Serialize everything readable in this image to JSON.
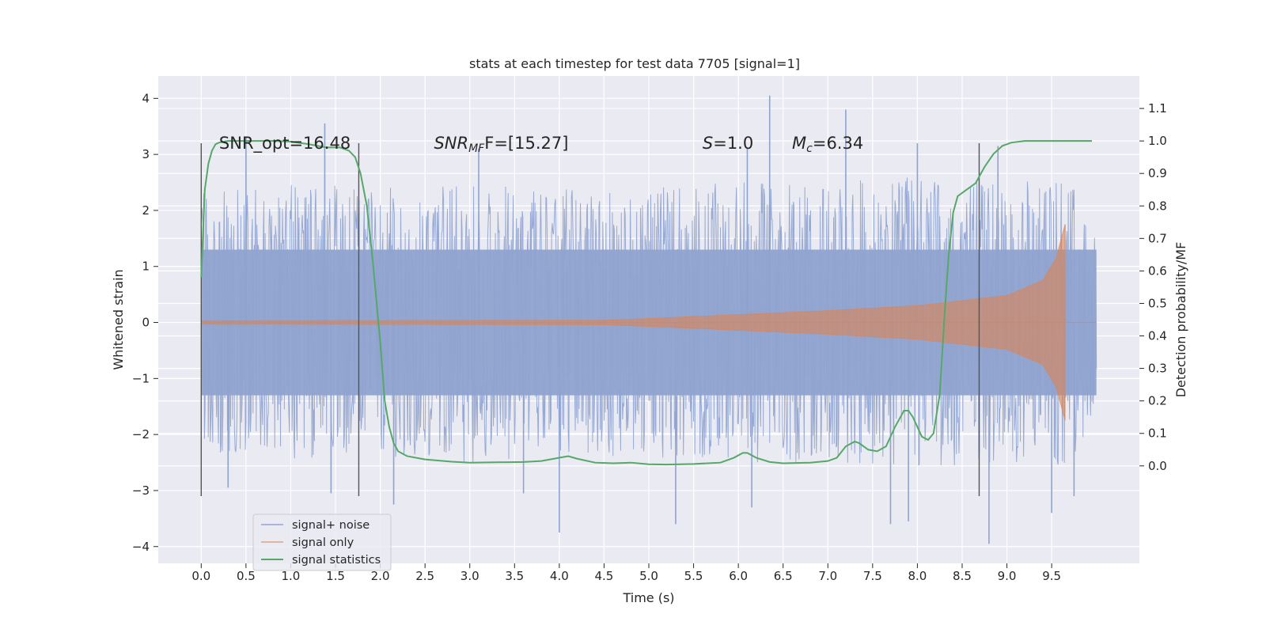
{
  "chart_data": {
    "type": "line",
    "title": "stats at each timestep for test data 7705 [signal=1]",
    "xlabel": "Time (s)",
    "ylabel": "Whitened strain",
    "ylabel_right": "Detection probability/MF",
    "xlim": [
      -0.48,
      10.48
    ],
    "ylim": [
      -4.3,
      4.4
    ],
    "ylim_right": [
      -0.3,
      1.2
    ],
    "x_ticks": [
      0.0,
      0.5,
      1.0,
      1.5,
      2.0,
      2.5,
      3.0,
      3.5,
      4.0,
      4.5,
      5.0,
      5.5,
      6.0,
      6.5,
      7.0,
      7.5,
      8.0,
      8.5,
      9.0,
      9.5
    ],
    "x_tick_labels": [
      "0.0",
      "0.5",
      "1.0",
      "1.5",
      "2.0",
      "2.5",
      "3.0",
      "3.5",
      "4.0",
      "4.5",
      "5.0",
      "5.5",
      "6.0",
      "6.5",
      "7.0",
      "7.5",
      "8.0",
      "8.5",
      "9.0",
      "9.5"
    ],
    "y_ticks": [
      -4,
      -3,
      -2,
      -1,
      0,
      1,
      2,
      3,
      4
    ],
    "y_tick_labels": [
      "−4",
      "−3",
      "−2",
      "−1",
      "0",
      "1",
      "2",
      "3",
      "4"
    ],
    "y_right_ticks": [
      0.0,
      0.1,
      0.2,
      0.3,
      0.4,
      0.5,
      0.6,
      0.7,
      0.8,
      0.9,
      1.0,
      1.1
    ],
    "y_right_tick_labels": [
      "0.0",
      "0.1",
      "0.2",
      "0.3",
      "0.4",
      "0.5",
      "0.6",
      "0.7",
      "0.8",
      "0.9",
      "1.0",
      "1.1"
    ],
    "grid": true,
    "legend_position": "lower-left",
    "annotations": [
      {
        "x": 0.2,
        "y": 3.1,
        "parts": [
          {
            "t": "SNR_opt=16.48",
            "s": "n"
          }
        ]
      },
      {
        "x": 2.6,
        "y": 3.1,
        "parts": [
          {
            "t": "SNR",
            "s": "i"
          },
          {
            "t": "MF",
            "s": "sub"
          },
          {
            "t": "F=[15.27]",
            "s": "n"
          }
        ]
      },
      {
        "x": 5.6,
        "y": 3.1,
        "parts": [
          {
            "t": "S",
            "s": "i"
          },
          {
            "t": "=1.0",
            "s": "n"
          }
        ]
      },
      {
        "x": 6.6,
        "y": 3.1,
        "parts": [
          {
            "t": "M",
            "s": "i"
          },
          {
            "t": "c",
            "s": "sub"
          },
          {
            "t": "=6.34",
            "s": "n"
          }
        ]
      }
    ],
    "vertical_lines": {
      "x": [
        0.0,
        1.76,
        8.69
      ],
      "ymin": -3.1,
      "ymax": 3.2
    },
    "series": [
      {
        "name": "signal+ noise",
        "color": "#8fa3cf",
        "x_range": [
          0.0,
          10.0
        ],
        "envelope": {
          "x": [
            0.0,
            1.0,
            2.0,
            3.0,
            4.0,
            5.0,
            6.0,
            7.0,
            8.0,
            9.0,
            9.7,
            10.0
          ],
          "upper": [
            2.3,
            2.5,
            2.4,
            2.5,
            2.4,
            2.4,
            2.5,
            2.5,
            2.6,
            2.5,
            2.6,
            1.5
          ],
          "lower": [
            -2.3,
            -2.5,
            -2.4,
            -2.5,
            -2.4,
            -2.4,
            -2.5,
            -2.5,
            -2.6,
            -2.5,
            -2.6,
            -1.6
          ]
        },
        "peaks": [
          {
            "x": 0.5,
            "y": 3.3
          },
          {
            "x": 1.38,
            "y": 3.55
          },
          {
            "x": 6.35,
            "y": 4.05
          },
          {
            "x": 7.2,
            "y": 3.8
          },
          {
            "x": 8.0,
            "y": 3.2
          },
          {
            "x": 3.1,
            "y": 3.1
          },
          {
            "x": 6.1,
            "y": 3.1
          },
          {
            "x": 8.9,
            "y": 3.15
          },
          {
            "x": 4.0,
            "y": -3.75
          },
          {
            "x": 5.3,
            "y": -3.6
          },
          {
            "x": 8.8,
            "y": -3.95
          },
          {
            "x": 7.9,
            "y": -3.55
          },
          {
            "x": 9.5,
            "y": -3.4
          },
          {
            "x": 0.3,
            "y": -2.95
          },
          {
            "x": 2.15,
            "y": -3.25
          },
          {
            "x": 6.15,
            "y": -3.3
          },
          {
            "x": 7.7,
            "y": -3.6
          },
          {
            "x": 9.75,
            "y": -3.1
          },
          {
            "x": 3.6,
            "y": -3.05
          },
          {
            "x": 1.45,
            "y": -3.05
          }
        ]
      },
      {
        "name": "signal only",
        "color": "#dd8452",
        "x_range": [
          0.0,
          9.65
        ],
        "envelope": {
          "x": [
            0.0,
            4.5,
            5.0,
            6.0,
            7.0,
            8.0,
            9.0,
            9.4,
            9.55,
            9.65,
            9.66
          ],
          "amp": [
            0.03,
            0.04,
            0.07,
            0.14,
            0.21,
            0.3,
            0.48,
            0.75,
            1.15,
            1.75,
            0.0
          ]
        }
      },
      {
        "name": "signal statistics",
        "color": "#55a868",
        "axis": "right",
        "x": [
          0.0,
          0.04,
          0.08,
          0.12,
          0.16,
          0.2,
          0.3,
          0.5,
          0.8,
          1.0,
          1.2,
          1.4,
          1.55,
          1.65,
          1.72,
          1.78,
          1.85,
          1.92,
          2.0,
          2.05,
          2.1,
          2.15,
          2.2,
          2.3,
          2.5,
          2.8,
          3.0,
          3.3,
          3.6,
          3.8,
          4.0,
          4.1,
          4.2,
          4.4,
          4.6,
          4.8,
          5.0,
          5.2,
          5.5,
          5.8,
          5.95,
          6.05,
          6.1,
          6.2,
          6.35,
          6.5,
          6.8,
          7.0,
          7.1,
          7.2,
          7.3,
          7.35,
          7.45,
          7.55,
          7.65,
          7.75,
          7.85,
          7.9,
          7.95,
          8.05,
          8.12,
          8.18,
          8.25,
          8.3,
          8.35,
          8.4,
          8.45,
          8.55,
          8.65,
          8.75,
          8.85,
          8.95,
          9.05,
          9.2,
          9.4,
          9.6,
          9.8,
          9.95
        ],
        "y": [
          0.58,
          0.85,
          0.93,
          0.97,
          0.99,
          0.995,
          1.0,
          1.0,
          1.0,
          0.998,
          0.99,
          0.98,
          0.98,
          0.97,
          0.95,
          0.9,
          0.8,
          0.62,
          0.38,
          0.2,
          0.12,
          0.07,
          0.045,
          0.03,
          0.02,
          0.013,
          0.01,
          0.011,
          0.012,
          0.015,
          0.025,
          0.03,
          0.022,
          0.01,
          0.008,
          0.01,
          0.005,
          0.004,
          0.006,
          0.01,
          0.025,
          0.04,
          0.04,
          0.025,
          0.012,
          0.008,
          0.01,
          0.015,
          0.025,
          0.06,
          0.075,
          0.07,
          0.05,
          0.045,
          0.06,
          0.12,
          0.17,
          0.17,
          0.15,
          0.09,
          0.08,
          0.1,
          0.22,
          0.45,
          0.65,
          0.78,
          0.83,
          0.85,
          0.87,
          0.92,
          0.96,
          0.985,
          0.995,
          1.0,
          1.0,
          1.0,
          1.0,
          1.0
        ]
      }
    ]
  }
}
